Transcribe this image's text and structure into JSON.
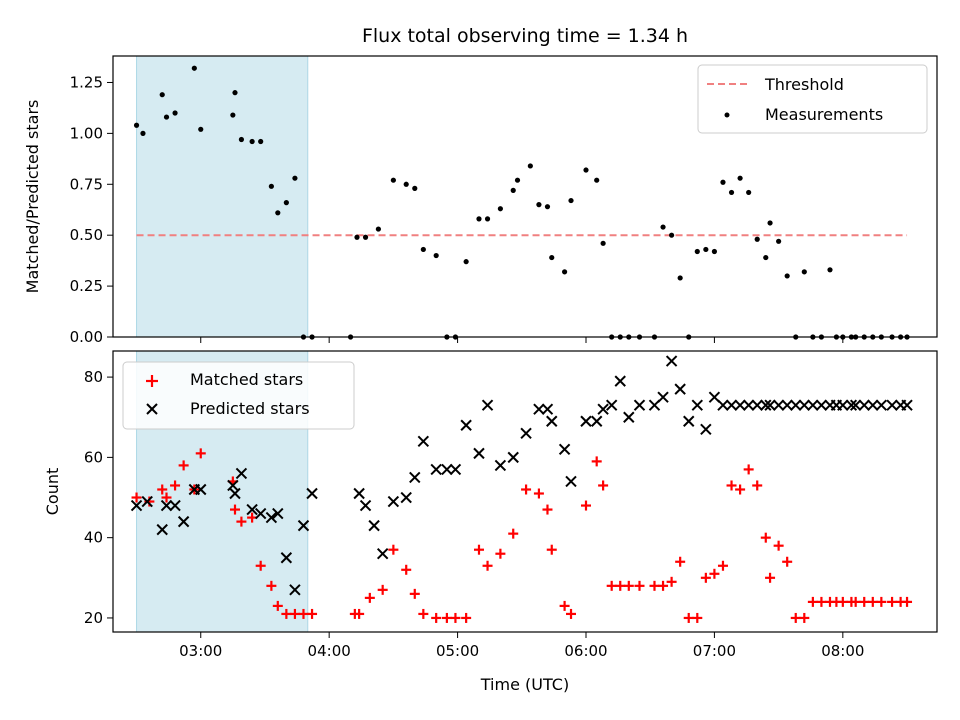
{
  "chart_data": [
    {
      "type": "scatter",
      "panel": "top",
      "title": "Flux total observing time = 1.34 h",
      "xlabel": "",
      "ylabel": "Matched/Predicted stars",
      "xlim": [
        "02:19",
        "08:44"
      ],
      "ylim": [
        0,
        1.38
      ],
      "yticks": [
        0.0,
        0.25,
        0.5,
        0.75,
        1.0,
        1.25
      ],
      "ytick_labels": [
        "0.00",
        "0.25",
        "0.50",
        "0.75",
        "1.00",
        "1.25"
      ],
      "xticks": [
        "03:00",
        "04:00",
        "05:00",
        "06:00",
        "07:00",
        "08:00"
      ],
      "xtick_labels_shown": false,
      "shaded_region": {
        "x_start": "02:30",
        "x_end": "03:50",
        "color": "#add8e6"
      },
      "threshold": {
        "name": "Threshold",
        "y": 0.5,
        "x_start": "02:30",
        "x_end": "08:30",
        "color": "#f08080",
        "style": "dashed"
      },
      "legend": {
        "placement": "top-right",
        "entries": [
          "Threshold",
          "Measurements"
        ]
      },
      "series": [
        {
          "name": "Measurements",
          "color": "#000000",
          "marker": "dot",
          "x": [
            "02:30",
            "02:33",
            "02:42",
            "02:44",
            "02:48",
            "02:57",
            "03:00",
            "03:15",
            "03:16",
            "03:19",
            "03:24",
            "03:28",
            "03:33",
            "03:36",
            "03:40",
            "03:44",
            "03:48",
            "03:52",
            "04:10",
            "04:13",
            "04:17",
            "04:23",
            "04:30",
            "04:36",
            "04:40",
            "04:44",
            "04:50",
            "04:55",
            "04:59",
            "05:04",
            "05:10",
            "05:14",
            "05:20",
            "05:26",
            "05:28",
            "05:34",
            "05:38",
            "05:42",
            "05:44",
            "05:50",
            "05:53",
            "06:00",
            "06:05",
            "06:08",
            "06:12",
            "06:16",
            "06:20",
            "06:25",
            "06:32",
            "06:36",
            "06:40",
            "06:44",
            "06:48",
            "06:52",
            "06:56",
            "07:00",
            "07:04",
            "07:08",
            "07:12",
            "07:16",
            "07:20",
            "07:24",
            "07:26",
            "07:30",
            "07:34",
            "07:38",
            "07:42",
            "07:46",
            "07:50",
            "07:54",
            "07:57",
            "08:00",
            "08:04",
            "08:06",
            "08:10",
            "08:14",
            "08:18",
            "08:23",
            "08:27",
            "08:30"
          ],
          "y": [
            1.04,
            1.0,
            1.19,
            1.08,
            1.1,
            1.32,
            1.02,
            1.09,
            1.2,
            0.97,
            0.96,
            0.96,
            0.74,
            0.61,
            0.66,
            0.78,
            0.0,
            0.0,
            0.0,
            0.49,
            0.49,
            0.53,
            0.77,
            0.75,
            0.73,
            0.43,
            0.4,
            0.0,
            0.0,
            0.37,
            0.58,
            0.58,
            0.63,
            0.72,
            0.77,
            0.84,
            0.65,
            0.64,
            0.39,
            0.32,
            0.67,
            0.82,
            0.77,
            0.46,
            0.0,
            0.0,
            0.0,
            0.0,
            0.0,
            0.54,
            0.5,
            0.29,
            0.0,
            0.42,
            0.43,
            0.42,
            0.76,
            0.71,
            0.78,
            0.71,
            0.48,
            0.39,
            0.56,
            0.47,
            0.3,
            0.0,
            0.32,
            0.0,
            0.0,
            0.33,
            0.0,
            0.0,
            0.0,
            0.0,
            0.0,
            0.0,
            0.0,
            0.0,
            0.0,
            0.0
          ]
        }
      ]
    },
    {
      "type": "scatter",
      "panel": "bottom",
      "title": "",
      "xlabel": "Time (UTC)",
      "ylabel": "Count",
      "xlim": [
        "02:19",
        "08:44"
      ],
      "ylim": [
        16.5,
        86.5
      ],
      "yticks": [
        20,
        40,
        60,
        80
      ],
      "ytick_labels": [
        "20",
        "40",
        "60",
        "80"
      ],
      "xticks": [
        "03:00",
        "04:00",
        "05:00",
        "06:00",
        "07:00",
        "08:00"
      ],
      "xtick_labels": [
        "03:00",
        "04:00",
        "05:00",
        "06:00",
        "07:00",
        "08:00"
      ],
      "shaded_region": {
        "x_start": "02:30",
        "x_end": "03:50",
        "color": "#add8e6"
      },
      "legend": {
        "placement": "top-left",
        "entries": [
          "Matched stars",
          "Predicted stars"
        ]
      },
      "series": [
        {
          "name": "Matched stars",
          "color": "#ff0000",
          "marker": "plus",
          "x": [
            "02:30",
            "02:36",
            "02:42",
            "02:44",
            "02:48",
            "02:52",
            "02:57",
            "03:00",
            "03:15",
            "03:16",
            "03:19",
            "03:24",
            "03:28",
            "03:33",
            "03:36",
            "03:40",
            "03:44",
            "03:48",
            "03:52",
            "04:12",
            "04:14",
            "04:19",
            "04:25",
            "04:30",
            "04:36",
            "04:40",
            "04:44",
            "04:50",
            "04:55",
            "04:59",
            "05:04",
            "05:10",
            "05:14",
            "05:20",
            "05:26",
            "05:32",
            "05:38",
            "05:42",
            "05:44",
            "05:50",
            "05:53",
            "06:00",
            "06:05",
            "06:08",
            "06:12",
            "06:16",
            "06:20",
            "06:25",
            "06:32",
            "06:36",
            "06:40",
            "06:44",
            "06:48",
            "06:52",
            "06:56",
            "07:00",
            "07:04",
            "07:08",
            "07:12",
            "07:16",
            "07:20",
            "07:24",
            "07:26",
            "07:30",
            "07:34",
            "07:38",
            "07:42",
            "07:46",
            "07:50",
            "07:54",
            "07:57",
            "08:00",
            "08:04",
            "08:06",
            "08:10",
            "08:14",
            "08:18",
            "08:23",
            "08:27",
            "08:30"
          ],
          "y": [
            50,
            49,
            52,
            50,
            53,
            58,
            52,
            61,
            54,
            47,
            44,
            45,
            33,
            28,
            23,
            21,
            21,
            21,
            21,
            21,
            21,
            25,
            27,
            37,
            32,
            26,
            21,
            20,
            20,
            20,
            20,
            37,
            33,
            36,
            41,
            52,
            51,
            47,
            37,
            23,
            21,
            48,
            59,
            53,
            28,
            28,
            28,
            28,
            28,
            28,
            29,
            34,
            20,
            20,
            30,
            31,
            33,
            53,
            52,
            57,
            53,
            40,
            30,
            38,
            34,
            20,
            20,
            24,
            24,
            24,
            24,
            24,
            24,
            24,
            24,
            24,
            24,
            24,
            24,
            24
          ]
        },
        {
          "name": "Predicted stars",
          "color": "#000000",
          "marker": "x",
          "x": [
            "02:30",
            "02:35",
            "02:42",
            "02:44",
            "02:48",
            "02:52",
            "02:57",
            "03:00",
            "03:15",
            "03:16",
            "03:19",
            "03:24",
            "03:28",
            "03:33",
            "03:36",
            "03:40",
            "03:44",
            "03:48",
            "03:52",
            "04:14",
            "04:17",
            "04:21",
            "04:25",
            "04:30",
            "04:36",
            "04:40",
            "04:44",
            "04:50",
            "04:55",
            "04:59",
            "05:04",
            "05:10",
            "05:14",
            "05:20",
            "05:26",
            "05:32",
            "05:38",
            "05:42",
            "05:44",
            "05:50",
            "05:53",
            "06:00",
            "06:05",
            "06:08",
            "06:12",
            "06:16",
            "06:20",
            "06:25",
            "06:32",
            "06:36",
            "06:40",
            "06:44",
            "06:48",
            "06:52",
            "06:56",
            "07:00",
            "07:04",
            "07:08",
            "07:12",
            "07:16",
            "07:20",
            "07:24",
            "07:26",
            "07:30",
            "07:34",
            "07:38",
            "07:42",
            "07:46",
            "07:50",
            "07:54",
            "07:57",
            "08:00",
            "08:04",
            "08:06",
            "08:10",
            "08:14",
            "08:18",
            "08:23",
            "08:27",
            "08:30"
          ],
          "y": [
            48,
            49,
            42,
            48,
            48,
            44,
            52,
            52,
            53,
            51,
            56,
            47,
            46,
            45,
            46,
            35,
            27,
            43,
            51,
            51,
            48,
            43,
            36,
            49,
            50,
            55,
            64,
            57,
            57,
            57,
            68,
            61,
            73,
            58,
            60,
            66,
            72,
            72,
            69,
            62,
            54,
            69,
            69,
            72,
            73,
            79,
            70,
            73,
            73,
            75,
            84,
            77,
            69,
            73,
            67,
            75,
            73,
            73,
            73,
            73,
            73,
            73,
            73,
            73,
            73,
            73,
            73,
            73,
            73,
            73,
            73,
            73,
            73,
            73,
            73,
            73,
            73,
            73,
            73,
            73
          ]
        }
      ]
    }
  ]
}
